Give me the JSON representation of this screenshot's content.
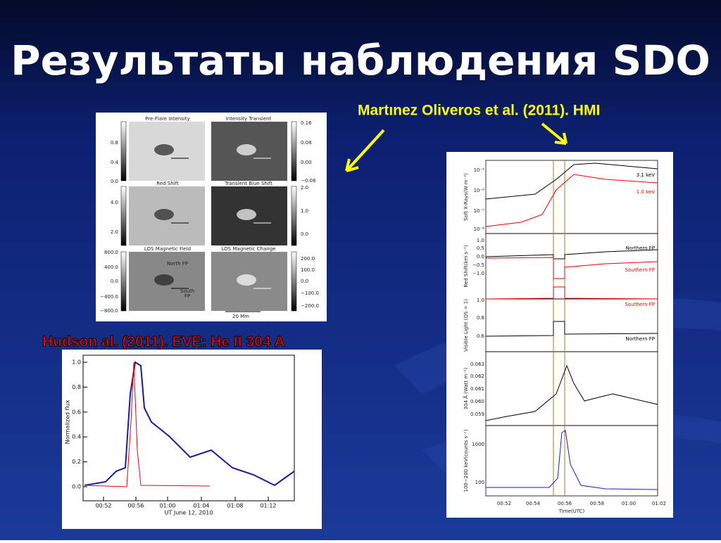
{
  "title": "Результаты наблюдения SDO",
  "captions": {
    "hmi": "Martınez Oliveros et al. (2011). HMI",
    "eve": "Hudson al. (2011). EVE: He II 304 A"
  },
  "hmi_figure": {
    "panels": [
      "Pre-Flare Intensity",
      "Intensity Transient",
      "Red Shift",
      "Transient Blue Shift",
      "LOS Magnetic Field",
      "LOS Magnetic Change"
    ],
    "left_scales": [
      [
        "0.8",
        "0.4",
        "0.0"
      ],
      [
        "4.0",
        "2.0"
      ],
      [
        "800.0",
        "400.0",
        "0.0",
        "−400.0",
        "−800.0"
      ]
    ],
    "right_scales": [
      [
        "0.16",
        "0.08",
        "0.00",
        "−0.08"
      ],
      [
        "2.0",
        "1.0",
        "0.0"
      ],
      [
        "200.0",
        "100.0",
        "0.0",
        "−100.0",
        "−200.0"
      ]
    ],
    "annotations": [
      "North FP",
      "South",
      "FP",
      "20 Mm"
    ]
  },
  "eve_figure": {
    "y_label": "Normalized flux",
    "x_label": "UT June 12, 2010",
    "yticks": [
      "1.0",
      "0.8",
      "0.6",
      "0.4",
      "0.2",
      "0.0"
    ],
    "xticks": [
      "00:52",
      "00:56",
      "01:00",
      "01:04",
      "01:08",
      "01:12"
    ]
  },
  "stack_figure": {
    "x_label": "Time(UTC)",
    "xticks": [
      "00:52",
      "00:54",
      "00:56",
      "00:58",
      "01:00",
      "01:02"
    ],
    "panels": [
      {
        "y_label": "Soft X-Rays(W m⁻²)",
        "yticks": [
          "10⁻⁵",
          "10⁻⁶",
          "10⁻⁷",
          "10⁻⁸"
        ],
        "legend": [
          "3.1 keV",
          "1.0 keV"
        ]
      },
      {
        "y_label": "Red Shift(km s⁻¹)",
        "yticks": [
          "1.0",
          "0.5",
          "0.0",
          "−0.5",
          "−1.0"
        ],
        "legend": [
          "Northern FP",
          "Southern FP"
        ]
      },
      {
        "y_label": "Visible Light (QS = 1)",
        "yticks": [
          "1.0",
          "0.8",
          "0.6"
        ],
        "legend": [
          "Southern FP",
          "Northern FP"
        ]
      },
      {
        "y_label": "304 Å (Watt m⁻²)",
        "yticks": [
          "0.063",
          "0.062",
          "0.061",
          "0.060",
          "0.059"
        ]
      },
      {
        "y_label": "100−200 keV(counts s⁻¹)",
        "yticks": [
          "1000",
          "100"
        ]
      }
    ]
  }
}
